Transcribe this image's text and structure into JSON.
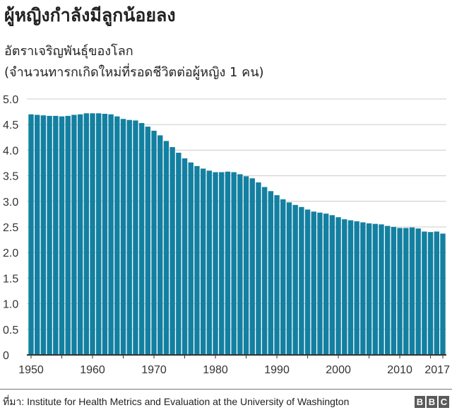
{
  "chart_data": {
    "type": "bar",
    "title": "ผู้หญิงกำลังมีลูกน้อยลง",
    "subtitle_lines": [
      "อัตราเจริญพันธุ์ของโลก",
      "(จำนวนทารกเกิดใหม่ที่รอดชีวิตต่อผู้หญิง 1 คน)"
    ],
    "x_start": 1950,
    "x_end": 2017,
    "values": [
      4.7,
      4.69,
      4.68,
      4.67,
      4.67,
      4.66,
      4.67,
      4.69,
      4.7,
      4.72,
      4.72,
      4.72,
      4.71,
      4.7,
      4.66,
      4.61,
      4.59,
      4.58,
      4.53,
      4.46,
      4.38,
      4.29,
      4.18,
      4.06,
      3.95,
      3.84,
      3.76,
      3.69,
      3.64,
      3.6,
      3.57,
      3.57,
      3.58,
      3.57,
      3.53,
      3.49,
      3.45,
      3.37,
      3.28,
      3.2,
      3.12,
      3.04,
      2.98,
      2.93,
      2.89,
      2.84,
      2.8,
      2.78,
      2.76,
      2.73,
      2.69,
      2.65,
      2.63,
      2.61,
      2.59,
      2.57,
      2.56,
      2.55,
      2.52,
      2.5,
      2.48,
      2.48,
      2.49,
      2.47,
      2.41,
      2.4,
      2.41,
      2.37
    ],
    "ylim": [
      0,
      5.0
    ],
    "y_ticks": [
      "0",
      "0.5",
      "1.0",
      "1.5",
      "2.0",
      "2.5",
      "3.0",
      "3.5",
      "4.0",
      "4.5",
      "5.0"
    ],
    "x_tick_labels": [
      "1950",
      "1960",
      "1970",
      "1980",
      "1990",
      "2000",
      "2010",
      "2017"
    ],
    "grid": true,
    "bar_color": "#1380A1"
  },
  "source": "ที่มา: Institute for Health Metrics and Evaluation at the University of Washington",
  "logo": "BBC"
}
